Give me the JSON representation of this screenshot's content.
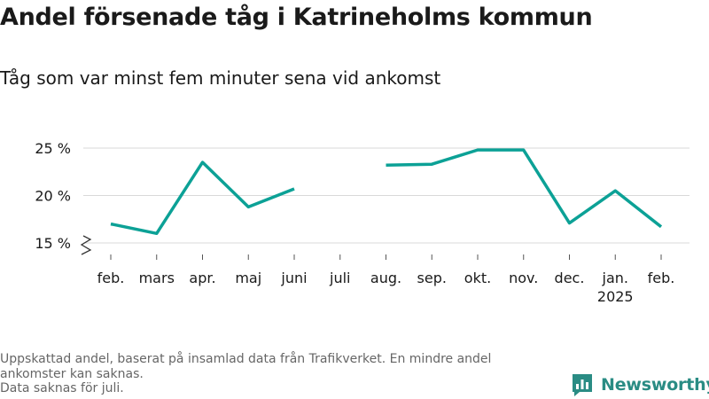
{
  "colors": {
    "line": "#0ca196",
    "grid": "#d9d9d9",
    "text": "#1a1a1a",
    "note": "#666666",
    "brand": "#2a8c84"
  },
  "chart_data": {
    "type": "line",
    "title": "Andel försenade tåg i Katrineholms kommun",
    "subtitle": "Tåg som var minst fem minuter sena vid ankomst",
    "categories": [
      "feb.",
      "mars",
      "apr.",
      "maj",
      "juni",
      "juli",
      "aug.",
      "sep.",
      "okt.",
      "nov.",
      "dec.",
      "jan.",
      "feb."
    ],
    "category_sublabels": [
      "",
      "",
      "",
      "",
      "",
      "",
      "",
      "",
      "",
      "",
      "",
      "2025",
      ""
    ],
    "series": [
      {
        "values": [
          17.0,
          16.0,
          23.5,
          18.8,
          20.7,
          null,
          23.2,
          23.3,
          24.8,
          24.8,
          17.1,
          20.5,
          16.7
        ]
      }
    ],
    "yticks": [
      15,
      20,
      25
    ],
    "ytick_labels": [
      "15 %",
      "20 %",
      "25 %"
    ],
    "ylim": [
      15,
      25
    ],
    "axis_break": true,
    "grid": true,
    "xlabel": "",
    "ylabel": ""
  },
  "footnote": {
    "line1": "Uppskattad andel, baserat på insamlad data från Trafikverket. En mindre andel ankomster kan saknas.",
    "line2": "Data saknas för juli."
  },
  "brand": {
    "name": "Newsworthy",
    "icon": "bar-chart-icon"
  }
}
